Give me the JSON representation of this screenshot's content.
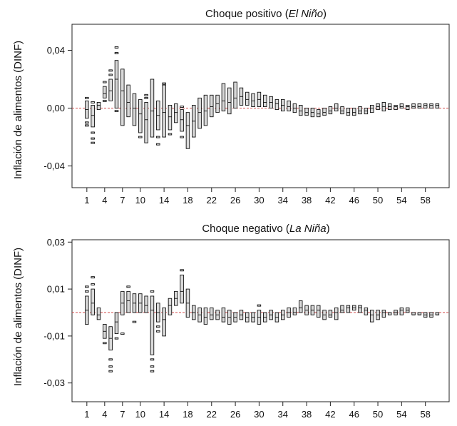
{
  "chart_data": [
    {
      "type": "boxplot",
      "title_plain": "Choque positivo (",
      "title_italic": "El Niño",
      "title_end": ")",
      "ylabel": "Inflación de alimentos (DINF)",
      "ylim": [
        -0.055,
        0.058
      ],
      "yticks": [
        -0.04,
        0.0,
        0.04
      ],
      "ytick_labels": [
        "-0,04",
        "0,00",
        "0,04"
      ],
      "xticks": [
        1,
        4,
        7,
        10,
        14,
        18,
        22,
        26,
        30,
        34,
        38,
        42,
        46,
        50,
        54,
        58
      ],
      "xlim": [
        -1.5,
        62
      ],
      "reference_line": 0,
      "series": [
        {
          "x": 1,
          "q1": -0.007,
          "q3": 0.005,
          "med": -0.001,
          "out": [
            -0.01,
            -0.012,
            0.007
          ]
        },
        {
          "x": 2,
          "q1": -0.013,
          "q3": 0.002,
          "med": -0.005,
          "out": [
            -0.017,
            -0.021,
            -0.024,
            0.004
          ]
        },
        {
          "x": 3,
          "q1": -0.001,
          "q3": 0.004,
          "med": 0.002,
          "out": []
        },
        {
          "x": 4,
          "q1": 0.007,
          "q3": 0.015,
          "med": 0.01,
          "out": [
            0.005,
            0.018
          ]
        },
        {
          "x": 5,
          "q1": 0.005,
          "q3": 0.02,
          "med": 0.012,
          "out": [
            0.023,
            0.026
          ]
        },
        {
          "x": 6,
          "q1": 0.0,
          "q3": 0.033,
          "med": 0.02,
          "out": [
            0.038,
            0.042,
            -0.002
          ]
        },
        {
          "x": 7,
          "q1": -0.012,
          "q3": 0.027,
          "med": 0.012,
          "out": []
        },
        {
          "x": 8,
          "q1": -0.006,
          "q3": 0.016,
          "med": 0.004,
          "out": []
        },
        {
          "x": 9,
          "q1": -0.012,
          "q3": 0.01,
          "med": 0.0,
          "out": []
        },
        {
          "x": 10,
          "q1": -0.017,
          "q3": 0.006,
          "med": -0.004,
          "out": [
            -0.02
          ]
        },
        {
          "x": 11,
          "q1": -0.024,
          "q3": 0.004,
          "med": -0.008,
          "out": [
            0.007,
            0.009
          ]
        },
        {
          "x": 12,
          "q1": -0.02,
          "q3": 0.02,
          "med": -0.002,
          "out": []
        },
        {
          "x": 13,
          "q1": -0.015,
          "q3": 0.005,
          "med": -0.005,
          "out": [
            -0.02,
            -0.025
          ]
        },
        {
          "x": 14,
          "q1": -0.02,
          "q3": 0.016,
          "med": -0.003,
          "out": [
            0.017
          ]
        },
        {
          "x": 15,
          "q1": -0.015,
          "q3": 0.002,
          "med": -0.006,
          "out": [
            -0.018
          ]
        },
        {
          "x": 16,
          "q1": -0.01,
          "q3": 0.003,
          "med": -0.003,
          "out": []
        },
        {
          "x": 17,
          "q1": -0.016,
          "q3": -0.001,
          "med": -0.008,
          "out": [
            -0.02,
            0.001
          ]
        },
        {
          "x": 18,
          "q1": -0.028,
          "q3": -0.003,
          "med": -0.012,
          "out": []
        },
        {
          "x": 19,
          "q1": -0.02,
          "q3": 0.002,
          "med": -0.009,
          "out": []
        },
        {
          "x": 20,
          "q1": -0.014,
          "q3": 0.007,
          "med": -0.003,
          "out": []
        },
        {
          "x": 21,
          "q1": -0.012,
          "q3": 0.009,
          "med": -0.002,
          "out": []
        },
        {
          "x": 22,
          "q1": -0.006,
          "q3": 0.009,
          "med": 0.001,
          "out": []
        },
        {
          "x": 23,
          "q1": -0.003,
          "q3": 0.009,
          "med": 0.003,
          "out": []
        },
        {
          "x": 24,
          "q1": -0.002,
          "q3": 0.017,
          "med": 0.005,
          "out": []
        },
        {
          "x": 25,
          "q1": -0.004,
          "q3": 0.014,
          "med": 0.004,
          "out": []
        },
        {
          "x": 26,
          "q1": 0.0,
          "q3": 0.018,
          "med": 0.007,
          "out": []
        },
        {
          "x": 27,
          "q1": 0.002,
          "q3": 0.014,
          "med": 0.008,
          "out": []
        },
        {
          "x": 28,
          "q1": 0.002,
          "q3": 0.011,
          "med": 0.006,
          "out": []
        },
        {
          "x": 29,
          "q1": 0.001,
          "q3": 0.01,
          "med": 0.005,
          "out": []
        },
        {
          "x": 30,
          "q1": 0.001,
          "q3": 0.011,
          "med": 0.006,
          "out": []
        },
        {
          "x": 31,
          "q1": 0.001,
          "q3": 0.009,
          "med": 0.004,
          "out": []
        },
        {
          "x": 32,
          "q1": 0.0,
          "q3": 0.008,
          "med": 0.004,
          "out": []
        },
        {
          "x": 33,
          "q1": -0.001,
          "q3": 0.006,
          "med": 0.003,
          "out": []
        },
        {
          "x": 34,
          "q1": -0.002,
          "q3": 0.006,
          "med": 0.002,
          "out": []
        },
        {
          "x": 35,
          "q1": -0.002,
          "q3": 0.005,
          "med": 0.001,
          "out": []
        },
        {
          "x": 36,
          "q1": -0.003,
          "q3": 0.003,
          "med": 0.0,
          "out": []
        },
        {
          "x": 37,
          "q1": -0.005,
          "q3": 0.002,
          "med": -0.002,
          "out": []
        },
        {
          "x": 38,
          "q1": -0.005,
          "q3": 0.0,
          "med": -0.003,
          "out": []
        },
        {
          "x": 39,
          "q1": -0.006,
          "q3": 0.0,
          "med": -0.003,
          "out": []
        },
        {
          "x": 40,
          "q1": -0.006,
          "q3": -0.001,
          "med": -0.004,
          "out": []
        },
        {
          "x": 41,
          "q1": -0.005,
          "q3": 0.0,
          "med": -0.003,
          "out": []
        },
        {
          "x": 42,
          "q1": -0.004,
          "q3": 0.001,
          "med": -0.002,
          "out": []
        },
        {
          "x": 43,
          "q1": -0.002,
          "q3": 0.003,
          "med": 0.0,
          "out": []
        },
        {
          "x": 44,
          "q1": -0.004,
          "q3": 0.001,
          "med": -0.002,
          "out": []
        },
        {
          "x": 45,
          "q1": -0.005,
          "q3": 0.0,
          "med": -0.003,
          "out": []
        },
        {
          "x": 46,
          "q1": -0.005,
          "q3": 0.0,
          "med": -0.003,
          "out": []
        },
        {
          "x": 47,
          "q1": -0.004,
          "q3": 0.001,
          "med": -0.002,
          "out": []
        },
        {
          "x": 48,
          "q1": -0.004,
          "q3": 0.0,
          "med": -0.002,
          "out": []
        },
        {
          "x": 49,
          "q1": -0.003,
          "q3": 0.002,
          "med": 0.0,
          "out": []
        },
        {
          "x": 50,
          "q1": -0.001,
          "q3": 0.003,
          "med": 0.001,
          "out": []
        },
        {
          "x": 51,
          "q1": -0.002,
          "q3": 0.004,
          "med": 0.001,
          "out": []
        },
        {
          "x": 52,
          "q1": -0.001,
          "q3": 0.003,
          "med": 0.001,
          "out": []
        },
        {
          "x": 53,
          "q1": -0.001,
          "q3": 0.002,
          "med": 0.001,
          "out": []
        },
        {
          "x": 54,
          "q1": 0.0,
          "q3": 0.003,
          "med": 0.001,
          "out": []
        },
        {
          "x": 55,
          "q1": -0.001,
          "q3": 0.002,
          "med": 0.001,
          "out": []
        },
        {
          "x": 56,
          "q1": 0.0,
          "q3": 0.003,
          "med": 0.001,
          "out": []
        },
        {
          "x": 57,
          "q1": 0.0,
          "q3": 0.003,
          "med": 0.001,
          "out": []
        },
        {
          "x": 58,
          "q1": 0.0,
          "q3": 0.003,
          "med": 0.002,
          "out": []
        },
        {
          "x": 59,
          "q1": 0.0,
          "q3": 0.003,
          "med": 0.002,
          "out": []
        },
        {
          "x": 60,
          "q1": 0.0,
          "q3": 0.003,
          "med": 0.002,
          "out": []
        }
      ]
    },
    {
      "type": "boxplot",
      "title_plain": "Choque negativo (",
      "title_italic": "La Niña",
      "title_end": ")",
      "ylabel": "Inflación de alimentos (DINF)",
      "ylim": [
        -0.038,
        0.031
      ],
      "yticks": [
        -0.03,
        -0.01,
        0.01,
        0.03
      ],
      "ytick_labels": [
        "-0,03",
        "-0,01",
        "0,01",
        "0,03"
      ],
      "xticks": [
        1,
        4,
        7,
        10,
        14,
        18,
        22,
        26,
        30,
        34,
        38,
        42,
        46,
        50,
        54,
        58
      ],
      "xlim": [
        -1.5,
        62
      ],
      "reference_line": 0,
      "series": [
        {
          "x": 1,
          "q1": -0.005,
          "q3": 0.007,
          "med": 0.001,
          "out": [
            0.009,
            0.011
          ]
        },
        {
          "x": 2,
          "q1": -0.001,
          "q3": 0.01,
          "med": 0.004,
          "out": [
            0.012,
            0.015
          ]
        },
        {
          "x": 3,
          "q1": -0.003,
          "q3": 0.002,
          "med": -0.001,
          "out": []
        },
        {
          "x": 4,
          "q1": -0.011,
          "q3": -0.005,
          "med": -0.008,
          "out": [
            -0.013
          ]
        },
        {
          "x": 5,
          "q1": -0.016,
          "q3": -0.006,
          "med": -0.011,
          "out": [
            -0.02,
            -0.023,
            -0.025
          ]
        },
        {
          "x": 6,
          "q1": -0.009,
          "q3": 0.0,
          "med": -0.004,
          "out": [
            -0.011
          ]
        },
        {
          "x": 7,
          "q1": -0.001,
          "q3": 0.009,
          "med": 0.004,
          "out": [
            -0.009
          ]
        },
        {
          "x": 8,
          "q1": 0.0,
          "q3": 0.009,
          "med": 0.005,
          "out": [
            0.011
          ]
        },
        {
          "x": 9,
          "q1": 0.0,
          "q3": 0.008,
          "med": 0.004,
          "out": [
            -0.004
          ]
        },
        {
          "x": 10,
          "q1": 0.0,
          "q3": 0.008,
          "med": 0.004,
          "out": []
        },
        {
          "x": 11,
          "q1": 0.0,
          "q3": 0.007,
          "med": 0.003,
          "out": []
        },
        {
          "x": 12,
          "q1": -0.018,
          "q3": 0.007,
          "med": 0.001,
          "out": [
            -0.02,
            -0.023,
            -0.025,
            0.009
          ]
        },
        {
          "x": 13,
          "q1": -0.004,
          "q3": 0.004,
          "med": 0.0,
          "out": [
            -0.006,
            -0.008
          ]
        },
        {
          "x": 14,
          "q1": -0.01,
          "q3": 0.002,
          "med": -0.003,
          "out": []
        },
        {
          "x": 15,
          "q1": -0.001,
          "q3": 0.006,
          "med": 0.003,
          "out": []
        },
        {
          "x": 16,
          "q1": 0.003,
          "q3": 0.009,
          "med": 0.006,
          "out": []
        },
        {
          "x": 17,
          "q1": 0.004,
          "q3": 0.016,
          "med": 0.009,
          "out": [
            0.018
          ]
        },
        {
          "x": 18,
          "q1": -0.002,
          "q3": 0.01,
          "med": 0.004,
          "out": []
        },
        {
          "x": 19,
          "q1": -0.003,
          "q3": 0.003,
          "med": 0.0,
          "out": []
        },
        {
          "x": 20,
          "q1": -0.004,
          "q3": 0.002,
          "med": -0.001,
          "out": []
        },
        {
          "x": 21,
          "q1": -0.005,
          "q3": 0.002,
          "med": -0.002,
          "out": []
        },
        {
          "x": 22,
          "q1": -0.003,
          "q3": 0.002,
          "med": -0.001,
          "out": []
        },
        {
          "x": 23,
          "q1": -0.003,
          "q3": 0.001,
          "med": -0.001,
          "out": []
        },
        {
          "x": 24,
          "q1": -0.004,
          "q3": 0.002,
          "med": -0.002,
          "out": []
        },
        {
          "x": 25,
          "q1": -0.005,
          "q3": 0.001,
          "med": -0.002,
          "out": []
        },
        {
          "x": 26,
          "q1": -0.004,
          "q3": 0.0,
          "med": -0.002,
          "out": []
        },
        {
          "x": 27,
          "q1": -0.003,
          "q3": 0.001,
          "med": -0.001,
          "out": []
        },
        {
          "x": 28,
          "q1": -0.004,
          "q3": 0.0,
          "med": -0.002,
          "out": []
        },
        {
          "x": 29,
          "q1": -0.004,
          "q3": 0.0,
          "med": -0.002,
          "out": []
        },
        {
          "x": 30,
          "q1": -0.005,
          "q3": 0.001,
          "med": -0.002,
          "out": [
            0.003
          ]
        },
        {
          "x": 31,
          "q1": -0.004,
          "q3": 0.0,
          "med": -0.002,
          "out": []
        },
        {
          "x": 32,
          "q1": -0.003,
          "q3": 0.001,
          "med": -0.001,
          "out": []
        },
        {
          "x": 33,
          "q1": -0.004,
          "q3": 0.0,
          "med": -0.002,
          "out": []
        },
        {
          "x": 34,
          "q1": -0.003,
          "q3": 0.001,
          "med": -0.001,
          "out": []
        },
        {
          "x": 35,
          "q1": -0.002,
          "q3": 0.002,
          "med": 0.0,
          "out": []
        },
        {
          "x": 36,
          "q1": -0.001,
          "q3": 0.002,
          "med": 0.0,
          "out": []
        },
        {
          "x": 37,
          "q1": 0.0,
          "q3": 0.005,
          "med": 0.002,
          "out": []
        },
        {
          "x": 38,
          "q1": -0.001,
          "q3": 0.003,
          "med": 0.001,
          "out": []
        },
        {
          "x": 39,
          "q1": -0.001,
          "q3": 0.003,
          "med": 0.001,
          "out": []
        },
        {
          "x": 40,
          "q1": -0.002,
          "q3": 0.003,
          "med": 0.001,
          "out": []
        },
        {
          "x": 41,
          "q1": -0.003,
          "q3": 0.001,
          "med": -0.001,
          "out": []
        },
        {
          "x": 42,
          "q1": -0.002,
          "q3": 0.001,
          "med": -0.001,
          "out": []
        },
        {
          "x": 43,
          "q1": -0.003,
          "q3": 0.002,
          "med": 0.0,
          "out": []
        },
        {
          "x": 44,
          "q1": 0.0,
          "q3": 0.003,
          "med": 0.001,
          "out": []
        },
        {
          "x": 45,
          "q1": 0.0,
          "q3": 0.003,
          "med": 0.002,
          "out": []
        },
        {
          "x": 46,
          "q1": 0.001,
          "q3": 0.003,
          "med": 0.002,
          "out": []
        },
        {
          "x": 47,
          "q1": 0.0,
          "q3": 0.003,
          "med": 0.002,
          "out": []
        },
        {
          "x": 48,
          "q1": -0.001,
          "q3": 0.002,
          "med": 0.001,
          "out": []
        },
        {
          "x": 49,
          "q1": -0.004,
          "q3": 0.001,
          "med": -0.001,
          "out": []
        },
        {
          "x": 50,
          "q1": -0.003,
          "q3": 0.001,
          "med": -0.001,
          "out": []
        },
        {
          "x": 51,
          "q1": -0.002,
          "q3": 0.001,
          "med": 0.0,
          "out": []
        },
        {
          "x": 52,
          "q1": -0.001,
          "q3": 0.0,
          "med": 0.0,
          "out": []
        },
        {
          "x": 53,
          "q1": -0.001,
          "q3": 0.001,
          "med": 0.0,
          "out": []
        },
        {
          "x": 54,
          "q1": -0.001,
          "q3": 0.002,
          "med": 0.001,
          "out": []
        },
        {
          "x": 55,
          "q1": 0.0,
          "q3": 0.002,
          "med": 0.001,
          "out": []
        },
        {
          "x": 56,
          "q1": -0.001,
          "q3": 0.0,
          "med": -0.001,
          "out": []
        },
        {
          "x": 57,
          "q1": -0.001,
          "q3": 0.0,
          "med": -0.001,
          "out": []
        },
        {
          "x": 58,
          "q1": -0.002,
          "q3": 0.0,
          "med": -0.001,
          "out": []
        },
        {
          "x": 59,
          "q1": -0.002,
          "q3": 0.0,
          "med": -0.001,
          "out": []
        },
        {
          "x": 60,
          "q1": -0.001,
          "q3": 0.0,
          "med": -0.001,
          "out": []
        }
      ]
    }
  ],
  "colors": {
    "box_fill": "#d9d9d9",
    "box_stroke": "#111111",
    "reference_line": "#cc3333"
  }
}
